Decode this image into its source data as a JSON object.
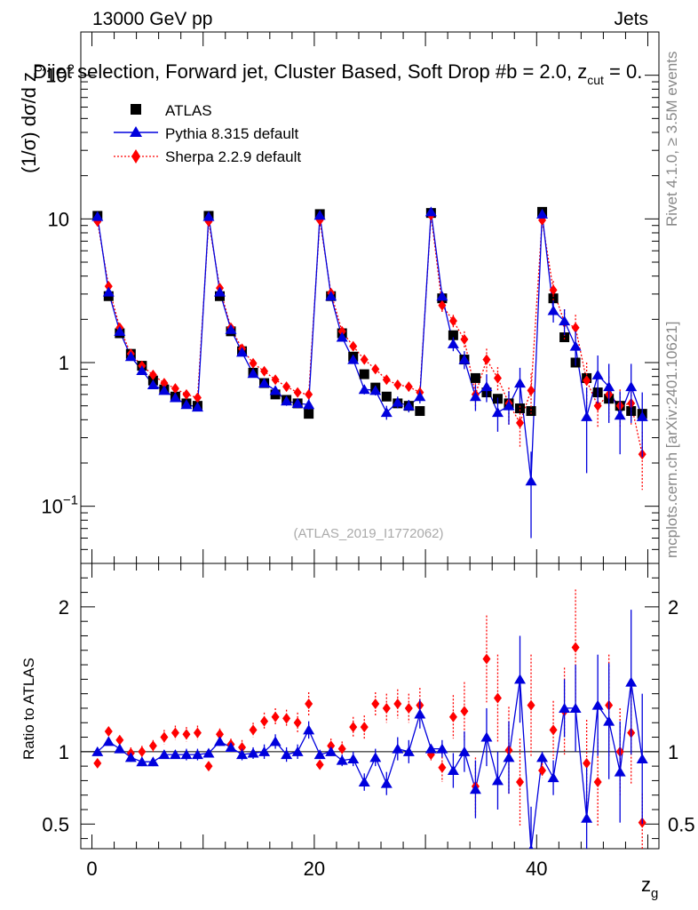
{
  "header": {
    "left": "13000 GeV pp",
    "right": "Jets"
  },
  "plot_title": "Dijet selection, Forward jet, Cluster Based, Soft Drop #b = 2.0, z",
  "plot_title_sub": "cut",
  "plot_title_tail": " = 0.",
  "side_labels": {
    "rivet": "Rivet 4.1.0, ≥ 3.5M events",
    "mcplots": "mcplots.cern.ch [arXiv:2401.10621]"
  },
  "watermark": "(ATLAS_2019_I1772062)",
  "legend": [
    {
      "name": "ATLAS",
      "color": "#000000",
      "marker": "square"
    },
    {
      "name": "Pythia 8.315 default",
      "color": "#0000dd",
      "marker": "triangle"
    },
    {
      "name": "Sherpa 2.2.9 default",
      "color": "#ff0000",
      "marker": "diamond"
    }
  ],
  "chart_data": {
    "type": "scatter",
    "title": "Dijet selection, Forward jet, Cluster Based, Soft Drop #b = 2.0, z_cut = 0.",
    "xlabel": "z",
    "xlabel_sub": "g",
    "ylabel": "(1/σ) dσ/d z",
    "ylabel_sub": "g",
    "ratio_ylabel": "Ratio to ATLAS",
    "xlim": [
      -1,
      51
    ],
    "ylim": [
      0.04,
      200
    ],
    "ratio_ylim": [
      0.33,
      2.3
    ],
    "x_ticks": [
      0,
      20,
      40
    ],
    "y_ticks": [
      {
        "value": 0.1,
        "base": "10",
        "exp": "−1"
      },
      {
        "value": 1,
        "base": "1",
        "exp": ""
      },
      {
        "value": 10,
        "base": "10",
        "exp": ""
      },
      {
        "value": 100,
        "base": "10",
        "exp": "2"
      }
    ],
    "ratio_ticks": [
      0.5,
      1,
      2
    ],
    "ratio_tick_labels": [
      "0.5",
      "1",
      "2"
    ],
    "x": [
      0.5,
      1.5,
      2.5,
      3.5,
      4.5,
      5.5,
      6.5,
      7.5,
      8.5,
      9.5,
      10.5,
      11.5,
      12.5,
      13.5,
      14.5,
      15.5,
      16.5,
      17.5,
      18.5,
      19.5,
      20.5,
      21.5,
      22.5,
      23.5,
      24.5,
      25.5,
      26.5,
      27.5,
      28.5,
      29.5,
      30.5,
      31.5,
      32.5,
      33.5,
      34.5,
      35.5,
      36.5,
      37.5,
      38.5,
      39.5,
      40.5,
      41.5,
      42.5,
      43.5,
      44.5,
      45.5,
      46.5,
      47.5,
      48.5,
      49.5
    ],
    "series": [
      {
        "name": "ATLAS",
        "values": [
          10.5,
          2.9,
          1.6,
          1.15,
          0.95,
          0.75,
          0.65,
          0.58,
          0.52,
          0.5,
          10.5,
          2.9,
          1.65,
          1.2,
          0.85,
          0.72,
          0.6,
          0.55,
          0.52,
          0.44,
          10.8,
          2.9,
          1.6,
          1.1,
          0.83,
          0.67,
          0.58,
          0.52,
          0.5,
          0.46,
          11.0,
          2.8,
          1.55,
          1.05,
          0.78,
          0.62,
          0.56,
          0.52,
          0.48,
          0.46,
          11.2,
          2.8,
          1.5,
          1.0,
          0.78,
          0.62,
          0.56,
          0.5,
          0.46,
          0.44
        ]
      },
      {
        "name": "Pythia 8.315 default",
        "values": [
          10.4,
          3.1,
          1.65,
          1.1,
          0.88,
          0.7,
          0.64,
          0.57,
          0.51,
          0.49,
          10.4,
          3.1,
          1.7,
          1.18,
          0.84,
          0.72,
          0.64,
          0.54,
          0.52,
          0.51,
          10.6,
          2.9,
          1.5,
          1.05,
          0.65,
          0.64,
          0.45,
          0.53,
          0.5,
          0.58,
          11.2,
          2.9,
          1.35,
          1.05,
          0.58,
          0.68,
          0.45,
          0.5,
          0.72,
          0.15,
          10.8,
          2.3,
          1.95,
          1.3,
          0.42,
          0.82,
          0.68,
          0.43,
          0.68,
          0.42
        ],
        "errors": [
          0,
          0.1,
          0.05,
          0.04,
          0.03,
          0.03,
          0.03,
          0.03,
          0.03,
          0.03,
          0.2,
          0.1,
          0.06,
          0.05,
          0.04,
          0.04,
          0.04,
          0.04,
          0.04,
          0.04,
          0.2,
          0.1,
          0.07,
          0.06,
          0.05,
          0.05,
          0.05,
          0.05,
          0.05,
          0.06,
          0.3,
          0.2,
          0.15,
          0.15,
          0.12,
          0.15,
          0.12,
          0.13,
          0.2,
          0.09,
          0.4,
          0.4,
          0.4,
          0.35,
          0.25,
          0.3,
          0.3,
          0.2,
          0.3,
          0.2
        ]
      },
      {
        "name": "Sherpa 2.2.9 default",
        "values": [
          9.6,
          3.4,
          1.75,
          1.15,
          0.95,
          0.82,
          0.72,
          0.66,
          0.6,
          0.57,
          9.6,
          3.3,
          1.75,
          1.25,
          0.99,
          0.87,
          0.76,
          0.68,
          0.62,
          0.6,
          9.8,
          3.05,
          1.65,
          1.3,
          1.05,
          0.9,
          0.76,
          0.7,
          0.68,
          0.62,
          10.6,
          2.5,
          1.95,
          1.45,
          0.6,
          1.05,
          0.78,
          0.52,
          0.38,
          0.64,
          9.8,
          3.2,
          1.9,
          1.75,
          0.75,
          0.5,
          0.6,
          0.5,
          0.52,
          0.23
        ],
        "errors": [
          0.2,
          0.1,
          0.05,
          0.04,
          0.03,
          0.03,
          0.03,
          0.03,
          0.03,
          0.03,
          0.2,
          0.1,
          0.06,
          0.05,
          0.04,
          0.04,
          0.04,
          0.04,
          0.04,
          0.04,
          0.3,
          0.12,
          0.08,
          0.07,
          0.06,
          0.05,
          0.05,
          0.05,
          0.05,
          0.06,
          0.4,
          0.25,
          0.2,
          0.2,
          0.12,
          0.2,
          0.15,
          0.15,
          0.12,
          0.2,
          0.6,
          0.5,
          0.45,
          0.4,
          0.25,
          0.15,
          0.2,
          0.15,
          0.15,
          0.1
        ]
      }
    ],
    "ratio_series": [
      {
        "name": "Pythia 8.315 default",
        "values": [
          1.0,
          1.07,
          1.02,
          0.96,
          0.93,
          0.93,
          0.98,
          0.98,
          0.98,
          0.98,
          0.99,
          1.07,
          1.03,
          0.98,
          0.99,
          1.0,
          1.07,
          0.98,
          1.0,
          1.15,
          0.98,
          1.0,
          0.94,
          0.95,
          0.79,
          0.96,
          0.78,
          1.02,
          1.0,
          1.26,
          1.02,
          1.02,
          0.87,
          1.0,
          0.74,
          1.1,
          0.8,
          0.96,
          1.5,
          0.32,
          0.96,
          0.82,
          1.3,
          1.3,
          0.54,
          1.32,
          1.21,
          0.86,
          1.48,
          0.95
        ],
        "errors": [
          0,
          0.02,
          0.03,
          0.03,
          0.03,
          0.03,
          0.03,
          0.03,
          0.04,
          0.04,
          0.02,
          0.03,
          0.03,
          0.04,
          0.04,
          0.05,
          0.05,
          0.05,
          0.05,
          0.06,
          0.02,
          0.03,
          0.04,
          0.05,
          0.06,
          0.06,
          0.08,
          0.08,
          0.08,
          0.1,
          0.03,
          0.06,
          0.12,
          0.14,
          0.2,
          0.2,
          0.2,
          0.25,
          0.3,
          0.3,
          0.04,
          0.12,
          0.2,
          0.3,
          0.35,
          0.35,
          0.4,
          0.35,
          0.5,
          0.45
        ]
      },
      {
        "name": "Sherpa 2.2.9 default",
        "values": [
          0.92,
          1.14,
          1.08,
          0.99,
          1.0,
          1.04,
          1.1,
          1.13,
          1.12,
          1.13,
          0.9,
          1.12,
          1.05,
          1.03,
          1.15,
          1.21,
          1.24,
          1.23,
          1.2,
          1.33,
          0.91,
          1.04,
          1.02,
          1.17,
          1.17,
          1.33,
          1.3,
          1.33,
          1.3,
          1.32,
          0.98,
          0.89,
          1.24,
          1.28,
          0.76,
          1.64,
          1.37,
          1.01,
          0.79,
          1.32,
          0.87,
          1.15,
          1.28,
          1.72,
          0.92,
          0.79,
          1.32,
          1.0,
          1.13,
          0.51
        ],
        "errors": [
          0.02,
          0.03,
          0.03,
          0.04,
          0.04,
          0.04,
          0.05,
          0.05,
          0.05,
          0.05,
          0.02,
          0.04,
          0.04,
          0.05,
          0.05,
          0.06,
          0.06,
          0.06,
          0.07,
          0.08,
          0.03,
          0.05,
          0.05,
          0.07,
          0.08,
          0.08,
          0.1,
          0.1,
          0.1,
          0.12,
          0.04,
          0.1,
          0.15,
          0.2,
          0.2,
          0.3,
          0.3,
          0.3,
          0.3,
          0.35,
          0.05,
          0.2,
          0.3,
          0.4,
          0.3,
          0.3,
          0.35,
          0.3,
          0.35,
          0.2
        ]
      }
    ]
  }
}
